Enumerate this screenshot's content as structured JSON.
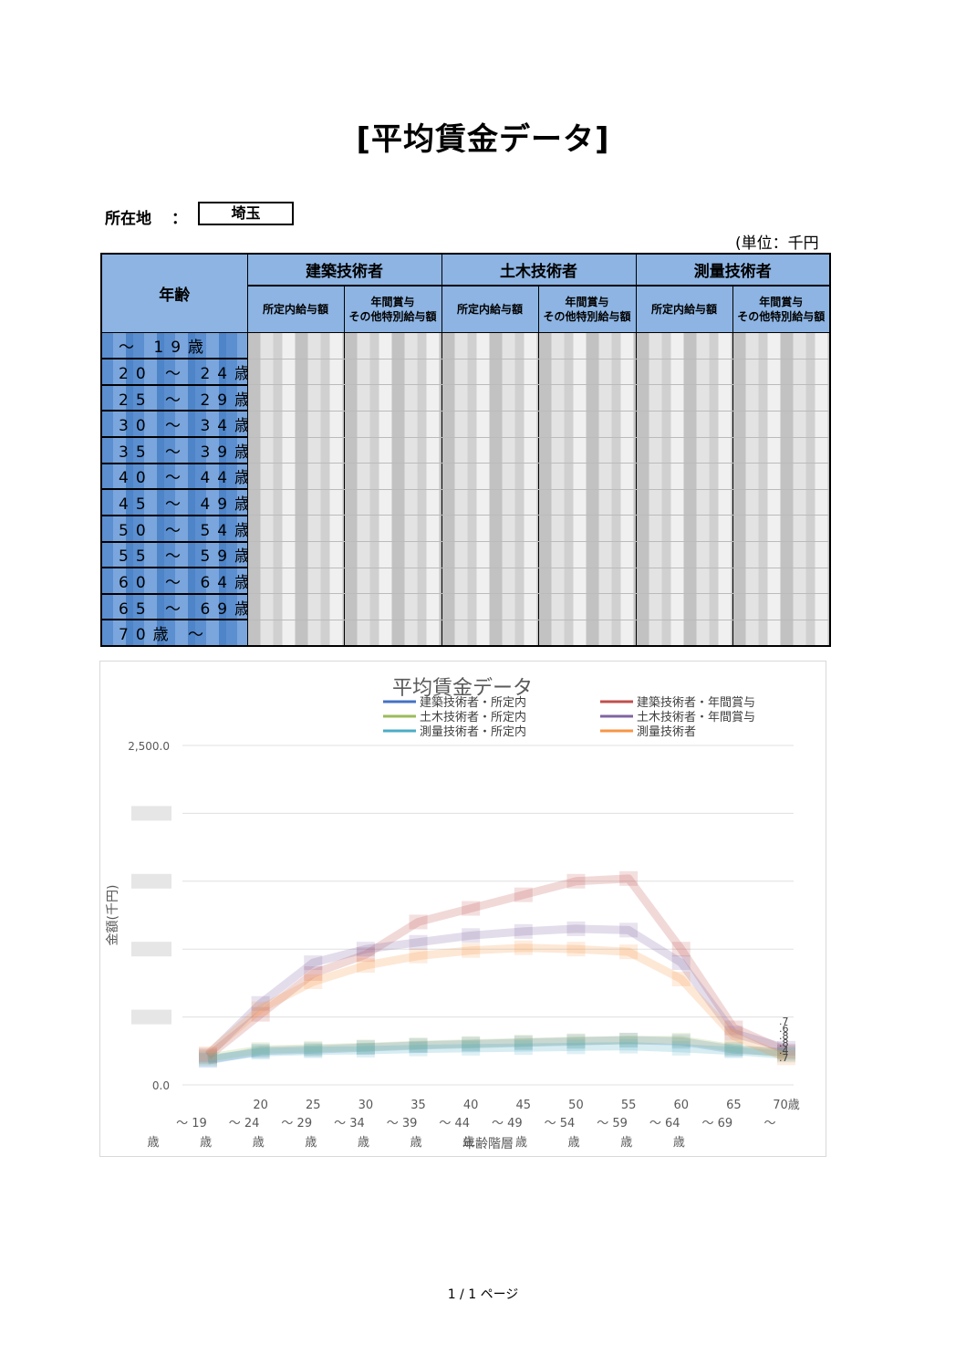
{
  "title": "[平均賃金データ]",
  "location": {
    "label": "所在地",
    "colon": "：",
    "value": "埼玉"
  },
  "unit": "(単位：千円",
  "table": {
    "age_header": "年齢",
    "groups": [
      "建築技術者",
      "土木技術者",
      "測量技術者"
    ],
    "sub_headers": [
      "所定内給与額",
      "年間賞与\nその他特別給与額"
    ],
    "rows": [
      "～ 19歳",
      "20 ～ 24歳",
      "25 ～ 29歳",
      "30 ～ 34歳",
      "35 ～ 39歳",
      "40 ～ 44歳",
      "45 ～ 49歳",
      "50 ～ 54歳",
      "55 ～ 59歳",
      "60 ～ 64歳",
      "65 ～ 69歳",
      "70歳 ～"
    ]
  },
  "chart_data": {
    "type": "line",
    "title": "平均賃金データ",
    "ylabel": "金額(千円)",
    "xlabel": "年齢階層",
    "ylim": [
      0,
      2500
    ],
    "y_ticks": [
      "2,500.0",
      "0.0"
    ],
    "categories_top": [
      "",
      "20",
      "25",
      "30",
      "35",
      "40",
      "45",
      "50",
      "55",
      "60",
      "65",
      "70歳"
    ],
    "categories_mid": [
      "～ 19",
      "～ 24",
      "～ 29",
      "～ 34",
      "～ 39",
      "～ 44",
      "～ 49",
      "～ 54",
      "～ 59",
      "～ 64",
      "～ 69",
      "～"
    ],
    "categories_bottom": [
      "歳",
      "歳",
      "歳",
      "歳",
      "歳",
      "歳",
      "歳",
      "歳",
      "歳",
      "歳",
      "歳",
      ""
    ],
    "end_labels": [
      ".7",
      ".6",
      ".8",
      ".8",
      ".4",
      ".7"
    ],
    "series": [
      {
        "name": "建築技術者・所定内",
        "color": "#4472c4",
        "values": [
          180,
          250,
          260,
          275,
          290,
          300,
          310,
          320,
          330,
          320,
          260,
          240
        ]
      },
      {
        "name": "建築技術者・年間賞与",
        "color": "#c0504d",
        "values": [
          210,
          520,
          820,
          960,
          1200,
          1300,
          1400,
          1500,
          1520,
          1000,
          420,
          250
        ]
      },
      {
        "name": "土木技術者・所定内",
        "color": "#9bbb59",
        "values": [
          200,
          260,
          270,
          280,
          295,
          305,
          315,
          325,
          330,
          330,
          270,
          230
        ]
      },
      {
        "name": "土木技術者・年間賞与",
        "color": "#8064a2",
        "values": [
          220,
          600,
          900,
          1000,
          1050,
          1100,
          1130,
          1150,
          1140,
          900,
          380,
          270
        ]
      },
      {
        "name": "測量技術者・所定内",
        "color": "#4bacc6",
        "values": [
          190,
          240,
          250,
          255,
          265,
          270,
          275,
          280,
          285,
          270,
          250,
          220
        ]
      },
      {
        "name": "測量技術者",
        "color": "#f79646",
        "values": [
          230,
          560,
          760,
          880,
          950,
          990,
          1010,
          1000,
          980,
          780,
          360,
          200
        ]
      }
    ]
  },
  "footer": "1 / 1 ページ"
}
